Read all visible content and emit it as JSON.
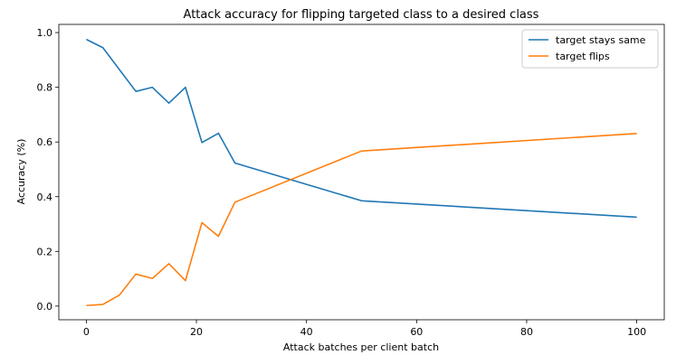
{
  "chart_data": {
    "type": "line",
    "title": "Attack accuracy for flipping targeted class to a desired class",
    "xlabel": "Attack batches per client batch",
    "ylabel": "Accuracy (%)",
    "xlim": [
      -5,
      105
    ],
    "ylim": [
      -0.05,
      1.03
    ],
    "xticks": [
      0,
      20,
      40,
      60,
      80,
      100
    ],
    "yticks": [
      0.0,
      0.2,
      0.4,
      0.6,
      0.8,
      1.0
    ],
    "xtick_labels": [
      "0",
      "20",
      "40",
      "60",
      "80",
      "100"
    ],
    "ytick_labels": [
      "0.0",
      "0.2",
      "0.4",
      "0.6",
      "0.8",
      "1.0"
    ],
    "grid": false,
    "legend_position": "top-right",
    "x": [
      0,
      3,
      6,
      9,
      12,
      15,
      18,
      21,
      24,
      27,
      50,
      100
    ],
    "series": [
      {
        "name": "target stays same",
        "color": "#1f77b4",
        "values": [
          0.975,
          0.945,
          0.865,
          0.785,
          0.8,
          0.742,
          0.8,
          0.598,
          0.632,
          0.523,
          0.385,
          0.325
        ]
      },
      {
        "name": "target flips",
        "color": "#ff7f0e",
        "values": [
          0.002,
          0.006,
          0.04,
          0.117,
          0.101,
          0.155,
          0.093,
          0.305,
          0.255,
          0.38,
          0.567,
          0.631
        ]
      }
    ]
  }
}
